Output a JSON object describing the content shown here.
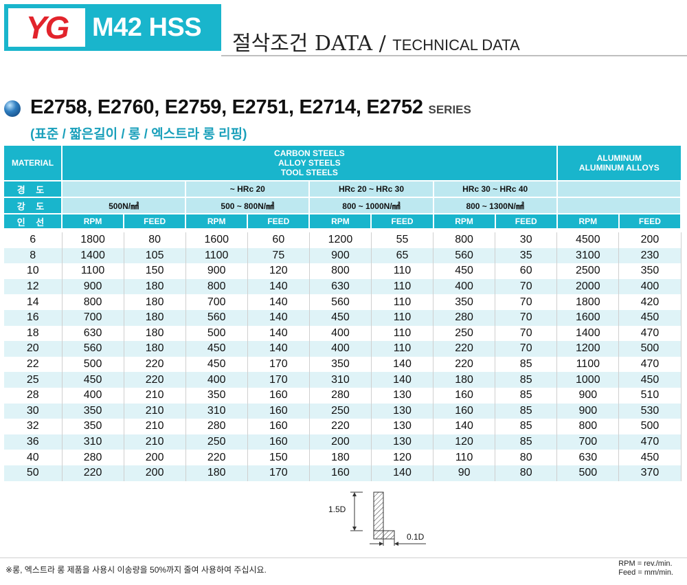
{
  "header": {
    "logo_text": "YG",
    "product": "M42 HSS",
    "title_ko": "절삭조건 DATA",
    "title_sep": " / ",
    "title_en": "TECHNICAL DATA"
  },
  "series": {
    "codes": "E2758, E2760, E2759, E2751, E2714, E2752",
    "suffix": "SERIES",
    "subtitle": "(표준 / 짧은길이 / 롱 / 엑스트라 롱 리핑)"
  },
  "table": {
    "material_label": "MATERIAL",
    "group1": [
      "CARBON STEELS",
      "ALLOY STEELS",
      "TOOL STEELS"
    ],
    "group2": [
      "ALUMINUM",
      "ALUMINUM ALLOYS"
    ],
    "hardness_label": "경 도",
    "hardness": [
      "",
      "~ HRc 20",
      "HRc 20 ~ HRc 30",
      "HRc 30 ~ HRc 40",
      ""
    ],
    "strength_label": "강 도",
    "strength": [
      "500N/㎟",
      "500 ~ 800N/㎟",
      "800 ~ 1000N/㎟",
      "800 ~ 1300N/㎟",
      ""
    ],
    "size_label": "인 선",
    "rpm_label": "RPM",
    "feed_label": "FEED",
    "rows": [
      [
        "6",
        "1800",
        "80",
        "1600",
        "60",
        "1200",
        "55",
        "800",
        "30",
        "4500",
        "200"
      ],
      [
        "8",
        "1400",
        "105",
        "1100",
        "75",
        "900",
        "65",
        "560",
        "35",
        "3100",
        "230"
      ],
      [
        "10",
        "1100",
        "150",
        "900",
        "120",
        "800",
        "110",
        "450",
        "60",
        "2500",
        "350"
      ],
      [
        "12",
        "900",
        "180",
        "800",
        "140",
        "630",
        "110",
        "400",
        "70",
        "2000",
        "400"
      ],
      [
        "14",
        "800",
        "180",
        "700",
        "140",
        "560",
        "110",
        "350",
        "70",
        "1800",
        "420"
      ],
      [
        "16",
        "700",
        "180",
        "560",
        "140",
        "450",
        "110",
        "280",
        "70",
        "1600",
        "450"
      ],
      [
        "18",
        "630",
        "180",
        "500",
        "140",
        "400",
        "110",
        "250",
        "70",
        "1400",
        "470"
      ],
      [
        "20",
        "560",
        "180",
        "450",
        "140",
        "400",
        "110",
        "220",
        "70",
        "1200",
        "500"
      ],
      [
        "22",
        "500",
        "220",
        "450",
        "170",
        "350",
        "140",
        "220",
        "85",
        "1100",
        "470"
      ],
      [
        "25",
        "450",
        "220",
        "400",
        "170",
        "310",
        "140",
        "180",
        "85",
        "1000",
        "450"
      ],
      [
        "28",
        "400",
        "210",
        "350",
        "160",
        "280",
        "130",
        "160",
        "85",
        "900",
        "510"
      ],
      [
        "30",
        "350",
        "210",
        "310",
        "160",
        "250",
        "130",
        "160",
        "85",
        "900",
        "530"
      ],
      [
        "32",
        "350",
        "210",
        "280",
        "160",
        "220",
        "130",
        "140",
        "85",
        "800",
        "500"
      ],
      [
        "36",
        "310",
        "210",
        "250",
        "160",
        "200",
        "130",
        "120",
        "85",
        "700",
        "470"
      ],
      [
        "40",
        "280",
        "200",
        "220",
        "150",
        "180",
        "120",
        "110",
        "80",
        "630",
        "450"
      ],
      [
        "50",
        "220",
        "200",
        "180",
        "170",
        "160",
        "140",
        "90",
        "80",
        "500",
        "370"
      ]
    ]
  },
  "diagram": {
    "height_label": "1.5D",
    "width_label": "0.1D"
  },
  "footer": {
    "note": "※롱, 엑스트라 롱 제품을 사용시 이송량을 50%까지 줄여 사용하여 주십시요.",
    "unit_rpm": "RPM = rev./min.",
    "unit_feed": "Feed = mm/min."
  },
  "colors": {
    "accent": "#19b5cc",
    "header_light": "#bde8f0",
    "row_alt": "#dff3f7",
    "logo_red": "#e2242c"
  }
}
